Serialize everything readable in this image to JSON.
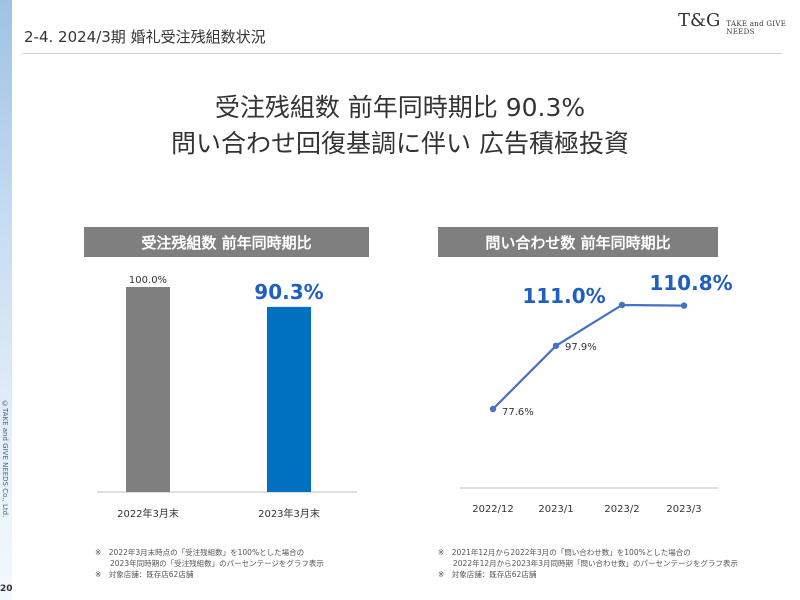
{
  "header": {
    "title": "2-4.  2024/3期  婚礼受注残組数状況"
  },
  "logo": {
    "mark": "T&G",
    "text": "TAKE and GIVE NEEDS"
  },
  "headline": {
    "line1": "受注残組数  前年同時期比 90.3%",
    "line2": "問い合わせ回復基調に伴い  広告積極投資"
  },
  "side": {
    "copyright": "©TAKE and GIVE NEEDS Co., Ltd.",
    "page_number": "20"
  },
  "chart_data": [
    {
      "type": "bar",
      "title": "受注残組数  前年同時期比",
      "categories": [
        "2022年3月末",
        "2023年3月末"
      ],
      "values": [
        100.0,
        90.3
      ],
      "value_labels": [
        "100.0%",
        "90.3%"
      ],
      "colors": [
        "#7f7f7f",
        "#0070c0"
      ],
      "ylim": [
        0,
        100
      ],
      "grid": false
    },
    {
      "type": "line",
      "title": "問い合わせ数  前年同時期比",
      "categories": [
        "2022/12",
        "2023/1",
        "2023/2",
        "2023/3"
      ],
      "values": [
        77.6,
        97.9,
        111.0,
        110.8
      ],
      "value_labels": [
        "77.6%",
        "97.9%",
        "111.0%",
        "110.8%"
      ],
      "color": "#4472c4",
      "highlight_color": "#1f5fbf",
      "ylim": [
        60,
        120
      ],
      "grid": false
    }
  ],
  "footnotes": {
    "left": [
      "※　2022年3月末時点の「受注残組数」を100%とした場合の",
      "　　2023年同時期の「受注残組数」のパーセンテージをグラフ表示",
      "※　対象店舗：既存店62店舗"
    ],
    "right": [
      "※　2021年12月から2022年3月の「問い合わせ数」を100%とした場合の",
      "　　2022年12月から2023年3月同時期「問い合わせ数」のパーセンテージをグラフ表示",
      "※　対象店舗：既存店62店舗"
    ]
  }
}
